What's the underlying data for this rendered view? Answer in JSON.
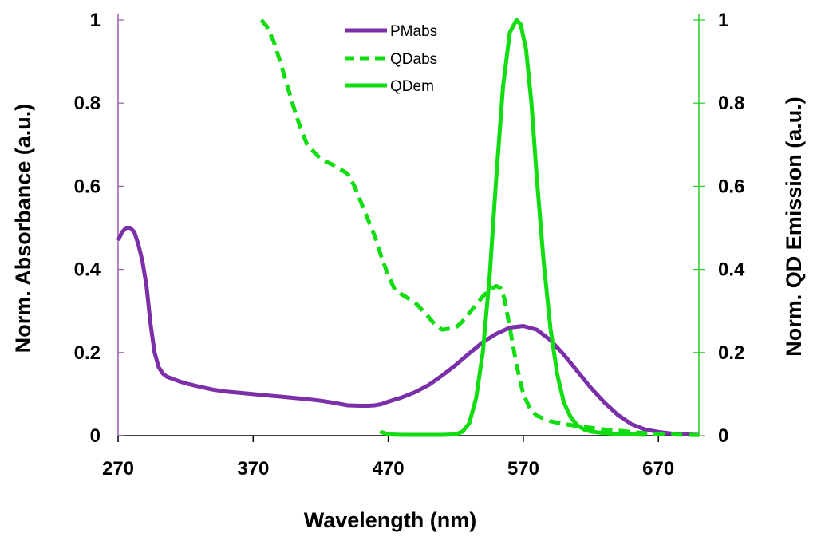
{
  "chart_data": {
    "type": "line",
    "xlabel": "Wavelength (nm)",
    "ylabel_left": "Norm. Absorbance (a.u.)",
    "ylabel_right": "Norm. QD Emission (a.u.)",
    "xlim": [
      270,
      700
    ],
    "ylim_left": [
      0,
      1
    ],
    "ylim_right": [
      0,
      1
    ],
    "x_ticks": [
      "270",
      "370",
      "470",
      "570",
      "670"
    ],
    "x_tick_values": [
      270,
      370,
      470,
      570,
      670
    ],
    "y_ticks": [
      "0",
      "0.2",
      "0.4",
      "0.6",
      "0.8",
      "1"
    ],
    "y_tick_values": [
      0,
      0.2,
      0.4,
      0.6,
      0.8,
      1
    ],
    "grid": false,
    "legend_position": "top-center",
    "colors": {
      "left_axis": "#9b59b6",
      "right_axis": "#22cc22",
      "pmabs": "#7b2fa8",
      "qd": "#11dd11"
    },
    "series": [
      {
        "name": "PMabs",
        "axis": "left",
        "style": "solid",
        "x": [
          270,
          273,
          276,
          279,
          282,
          285,
          288,
          291,
          294,
          297,
          300,
          303,
          306,
          310,
          315,
          320,
          330,
          340,
          350,
          360,
          370,
          380,
          390,
          400,
          410,
          420,
          430,
          440,
          450,
          455,
          460,
          465,
          470,
          480,
          490,
          500,
          510,
          520,
          530,
          540,
          550,
          560,
          570,
          580,
          590,
          600,
          610,
          620,
          630,
          640,
          650,
          660,
          670,
          680,
          690,
          700
        ],
        "y": [
          0.47,
          0.49,
          0.5,
          0.5,
          0.49,
          0.46,
          0.42,
          0.36,
          0.27,
          0.2,
          0.165,
          0.15,
          0.142,
          0.137,
          0.131,
          0.126,
          0.118,
          0.111,
          0.106,
          0.103,
          0.1,
          0.097,
          0.094,
          0.091,
          0.088,
          0.084,
          0.079,
          0.073,
          0.072,
          0.072,
          0.073,
          0.076,
          0.082,
          0.092,
          0.105,
          0.122,
          0.145,
          0.17,
          0.198,
          0.225,
          0.245,
          0.26,
          0.264,
          0.255,
          0.23,
          0.195,
          0.155,
          0.115,
          0.08,
          0.05,
          0.028,
          0.015,
          0.009,
          0.005,
          0.003,
          0.002
        ]
      },
      {
        "name": "QDabs",
        "axis": "left",
        "style": "dashed",
        "x": [
          376,
          380,
          385,
          390,
          395,
          400,
          405,
          410,
          420,
          430,
          440,
          445,
          450,
          455,
          460,
          465,
          470,
          475,
          480,
          490,
          500,
          505,
          510,
          520,
          525,
          530,
          535,
          540,
          545,
          550,
          553,
          556,
          560,
          565,
          570,
          575,
          580,
          590,
          600,
          610,
          620,
          630,
          640,
          650,
          660,
          670,
          680,
          690,
          700
        ],
        "y": [
          1.0,
          0.985,
          0.95,
          0.9,
          0.845,
          0.79,
          0.74,
          0.7,
          0.665,
          0.65,
          0.63,
          0.6,
          0.56,
          0.52,
          0.48,
          0.43,
          0.385,
          0.35,
          0.34,
          0.32,
          0.285,
          0.265,
          0.255,
          0.26,
          0.275,
          0.295,
          0.315,
          0.335,
          0.35,
          0.36,
          0.355,
          0.33,
          0.26,
          0.17,
          0.1,
          0.065,
          0.048,
          0.035,
          0.028,
          0.023,
          0.019,
          0.015,
          0.012,
          0.009,
          0.006,
          0.004,
          0.003,
          0.002,
          0.0015
        ]
      },
      {
        "name": "QDem",
        "axis": "right",
        "style": "solid",
        "x": [
          464,
          470,
          480,
          490,
          500,
          510,
          520,
          525,
          530,
          535,
          540,
          545,
          550,
          555,
          560,
          565,
          568,
          572,
          576,
          580,
          585,
          590,
          595,
          600,
          605,
          610,
          615,
          620,
          630,
          640,
          650,
          660
        ],
        "y": [
          0.01,
          0.003,
          0.002,
          0.002,
          0.002,
          0.002,
          0.003,
          0.01,
          0.03,
          0.09,
          0.2,
          0.38,
          0.62,
          0.84,
          0.97,
          1.0,
          0.99,
          0.93,
          0.8,
          0.62,
          0.42,
          0.26,
          0.15,
          0.08,
          0.045,
          0.025,
          0.015,
          0.01,
          0.006,
          0.004,
          0.003,
          0.002
        ]
      }
    ]
  }
}
